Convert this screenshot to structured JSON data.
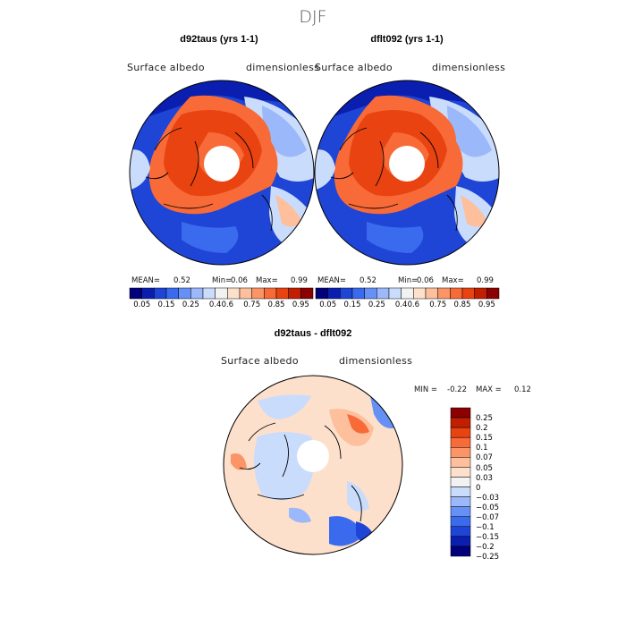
{
  "season": "DJF",
  "panels": [
    {
      "title": "d92taus (yrs 1-1)",
      "variable": "Surface albedo",
      "units": "dimensionless",
      "stats": {
        "mean_label": "MEAN=",
        "mean": "0.52",
        "min_label": "Min=",
        "min": "0.06",
        "max_label": "Max=",
        "max": "0.99"
      }
    },
    {
      "title": "dflt092 (yrs 1-1)",
      "variable": "Surface albedo",
      "units": "dimensionless",
      "stats": {
        "mean_label": "MEAN=",
        "mean": "0.52",
        "min_label": "Min=",
        "min": "0.06",
        "max_label": "Max=",
        "max": "0.99"
      }
    }
  ],
  "diff": {
    "title": "d92taus - dflt092",
    "variable": "Surface albedo",
    "units": "dimensionless",
    "stats": {
      "min_label": "MIN =",
      "min": "-0.22",
      "max_label": "MAX =",
      "max": "0.12"
    }
  },
  "colorbar_top": {
    "colors": [
      "#00007a",
      "#0a1fb0",
      "#1f45d6",
      "#3a6aee",
      "#6590f5",
      "#9ab8fa",
      "#cadcfc",
      "#f2f2f2",
      "#fde0cc",
      "#fdbf9c",
      "#fb9466",
      "#f86a37",
      "#e84311",
      "#c21e00",
      "#8b0000"
    ],
    "labels": [
      "0.05",
      "0.15",
      "0.25",
      "0.4",
      "0.6",
      "0.75",
      "0.85",
      "0.95"
    ]
  },
  "colorbar_diff": {
    "colors": [
      "#8b0000",
      "#c21e00",
      "#e84311",
      "#f86a37",
      "#fb9466",
      "#fdbf9c",
      "#fde0cc",
      "#f2f2f2",
      "#cadcfc",
      "#9ab8fa",
      "#6590f5",
      "#3a6aee",
      "#1f45d6",
      "#0a1fb0",
      "#00007a"
    ],
    "labels": [
      "0.25",
      "0.2",
      "0.15",
      "0.1",
      "0.07",
      "0.05",
      "0.03",
      "0",
      "−0.03",
      "−0.05",
      "−0.07",
      "−0.1",
      "−0.15",
      "−0.2",
      "−0.25"
    ]
  }
}
